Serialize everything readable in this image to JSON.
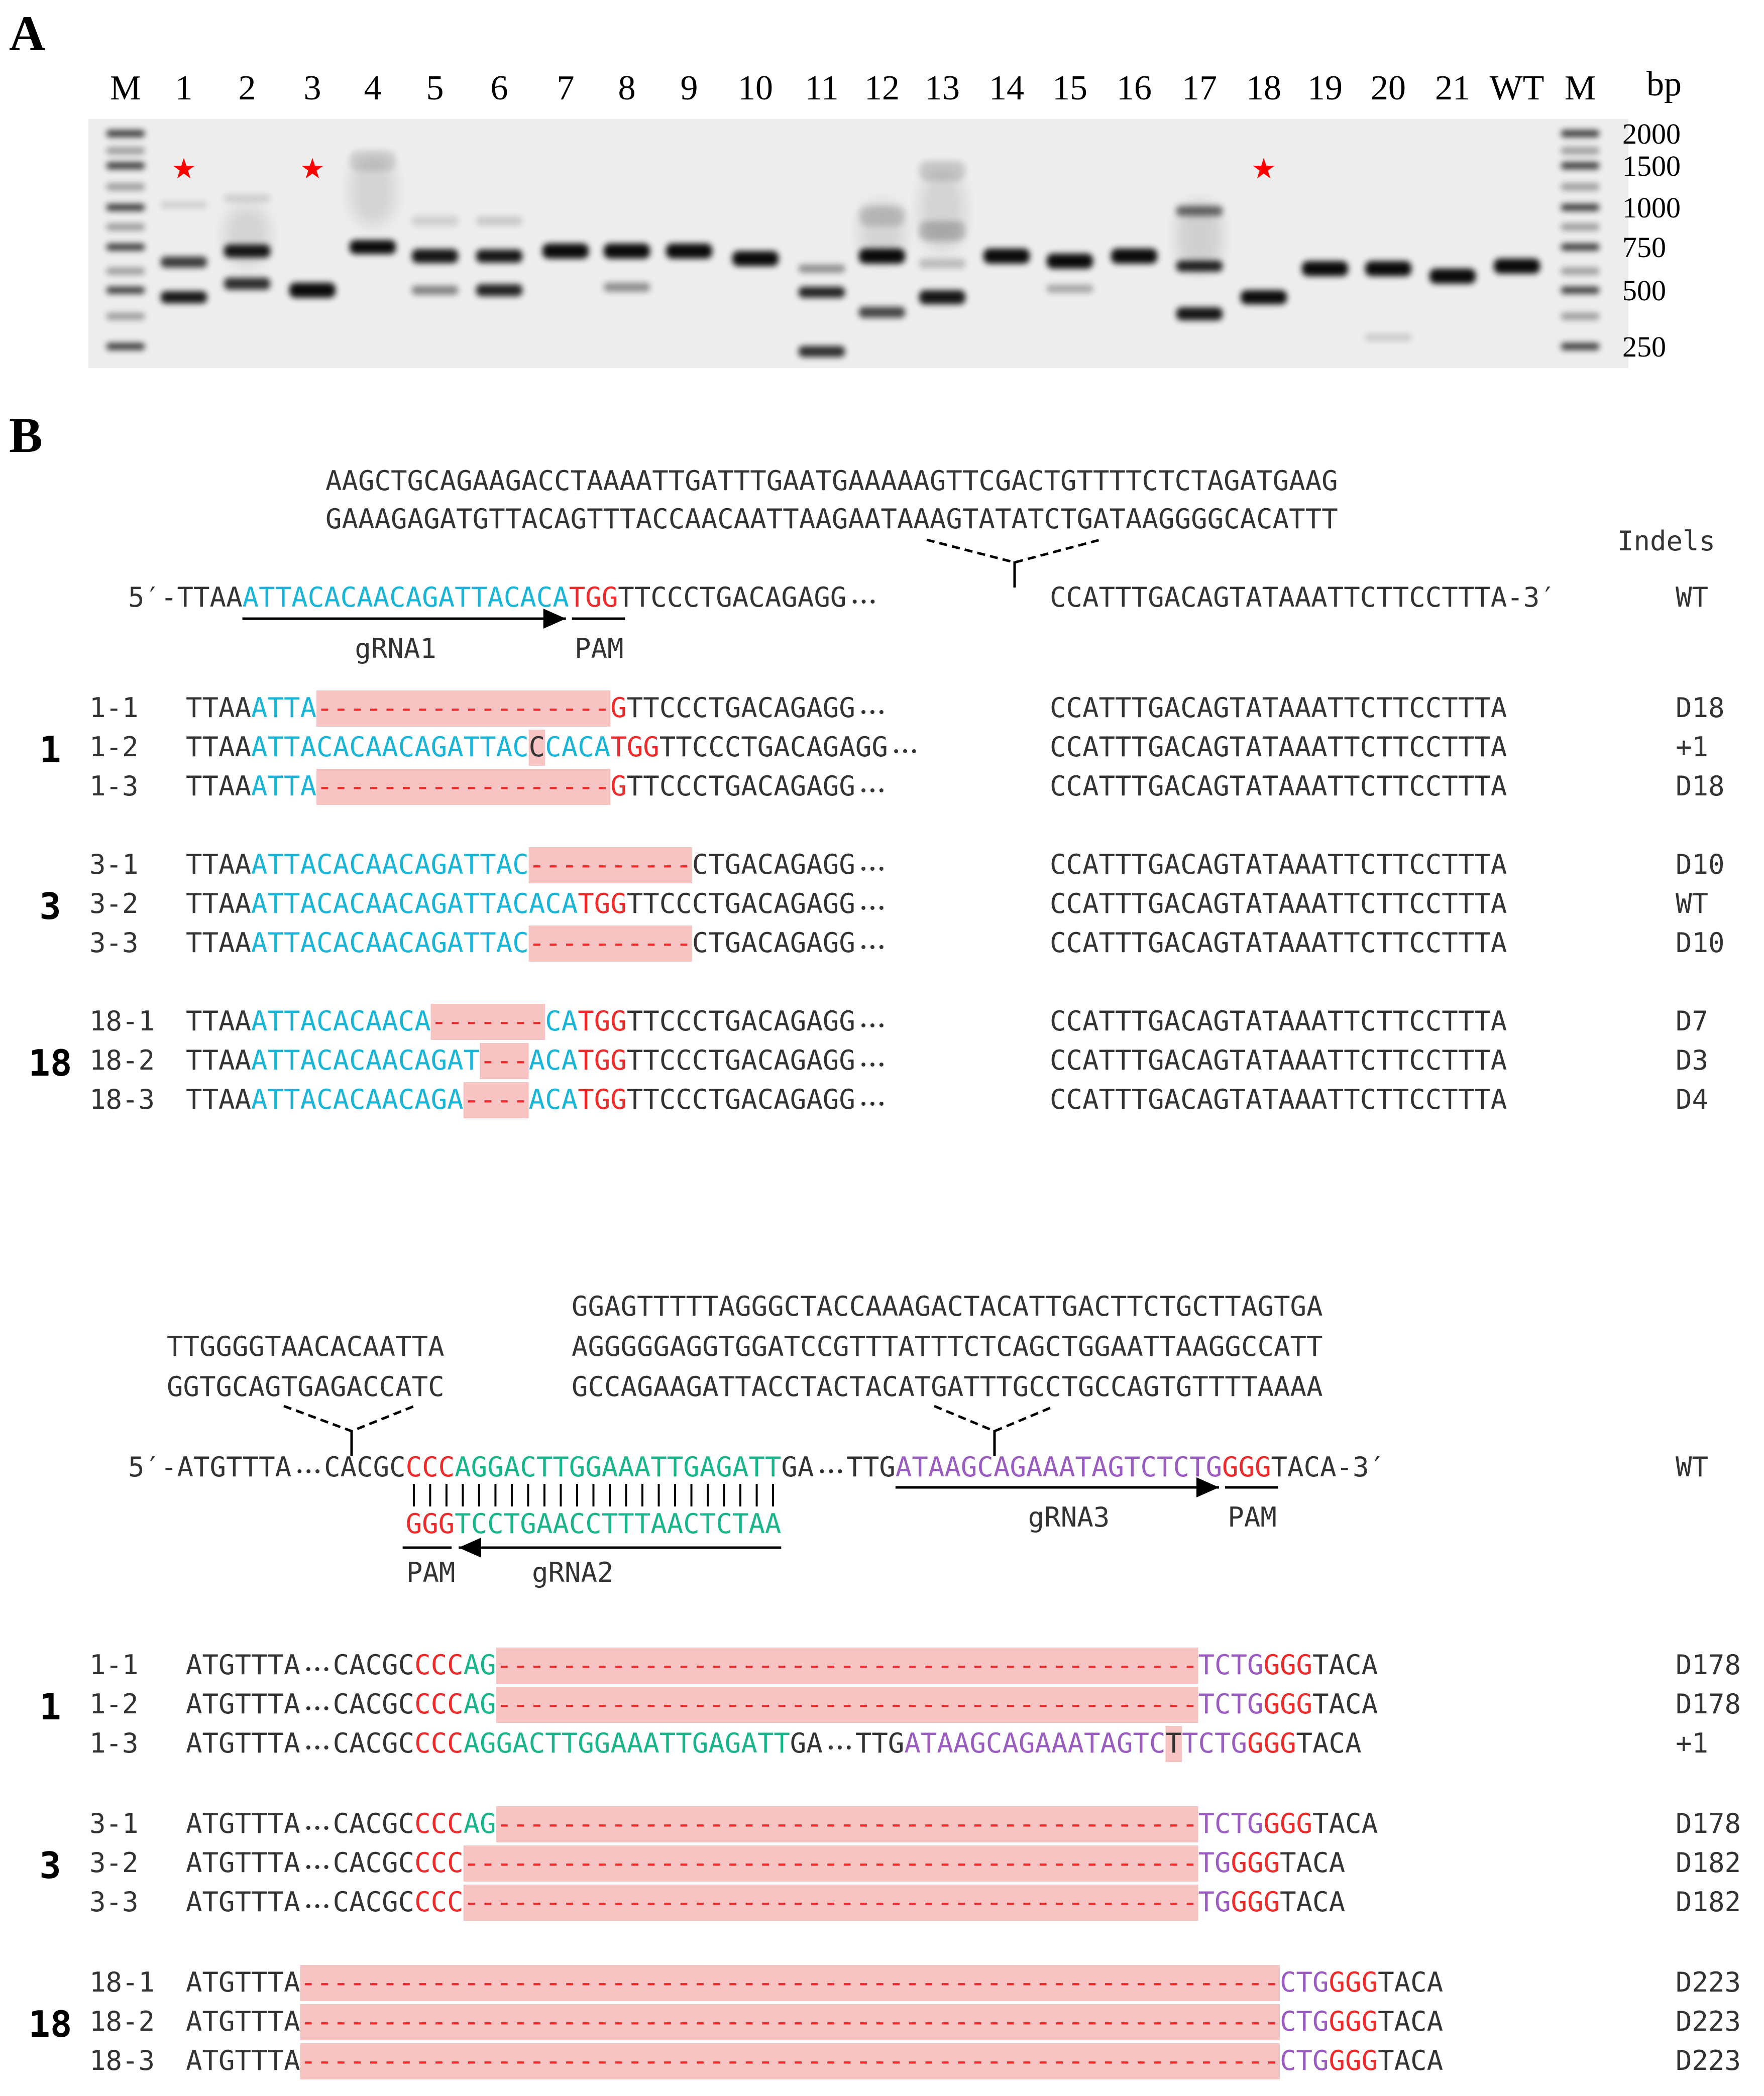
{
  "colors": {
    "black": "#333333",
    "grna1": "#17b5d8",
    "pam": "#ee2a2a",
    "grna2": "#19b58a",
    "grna3": "#9a5cc0",
    "deletion_bg": "#f8c3c3",
    "gel_bg": "#ededed",
    "star": "#ff0000"
  },
  "panelA": {
    "label": "A",
    "lane_labels": [
      "M",
      "1",
      "2",
      "3",
      "4",
      "5",
      "6",
      "7",
      "8",
      "9",
      "10",
      "11",
      "12",
      "13",
      "14",
      "15",
      "16",
      "17",
      "18",
      "19",
      "20",
      "21",
      "WT",
      "M"
    ],
    "bp_title": "bp",
    "ladder": [
      "2000",
      "1500",
      "1000",
      "750",
      "500",
      "250"
    ],
    "stars": [
      "1",
      "3",
      "18"
    ],
    "star_char": "★"
  },
  "panelB": {
    "label": "B",
    "region1": {
      "insert_lines": [
        "AAGCTGCAGAAGACCTAAAATTGATTTGAATGAAAAAGTTCGACTGTTTTCTCTAGATGAAG",
        "GAAAGAGATGTTACAGTTTACCAACAATTAAGAATAAAGTATATCTGATAAGGGGCACATTT"
      ],
      "indels_header": "Indels",
      "wt_prefix": "5′-TTAA",
      "wt_grna": "ATTACACAACAGATTACACA",
      "wt_pam": "TGG",
      "wt_mid": "TTCCCTGACAGAGG",
      "wt_right": "CCATTTGACAGTATAAATTCTTCCTTTA-3′",
      "wt_tag": "WT",
      "grna_label": "gRNA1",
      "pam_label": "PAM",
      "groups": [
        {
          "clone": "1",
          "rows": [
            {
              "id": "1-1",
              "pre": "TTAA",
              "seg": [
                {
                  "t": "ATTA",
                  "c": "grna1"
                },
                {
                  "t": "------------------",
                  "c": "pam",
                  "del": true
                },
                {
                  "t": "G",
                  "c": "pam"
                }
              ],
              "mid": "TTCCCTGACAGAGG",
              "right": "CCATTTGACAGTATAAATTCTTCCTTTA",
              "indel": "D18"
            },
            {
              "id": "1-2",
              "pre": "TTAA",
              "seg": [
                {
                  "t": "ATTACACAACAGATTAC",
                  "c": "grna1"
                },
                {
                  "t": "C",
                  "c": "black",
                  "ins": true
                },
                {
                  "t": "CACA",
                  "c": "grna1"
                },
                {
                  "t": "TGG",
                  "c": "pam"
                }
              ],
              "mid": "TTCCCTGACAGAGG",
              "right": "CCATTTGACAGTATAAATTCTTCCTTTA",
              "indel": "+1"
            },
            {
              "id": "1-3",
              "pre": "TTAA",
              "seg": [
                {
                  "t": "ATTA",
                  "c": "grna1"
                },
                {
                  "t": "------------------",
                  "c": "pam",
                  "del": true
                },
                {
                  "t": "G",
                  "c": "pam"
                }
              ],
              "mid": "TTCCCTGACAGAGG",
              "right": "CCATTTGACAGTATAAATTCTTCCTTTA",
              "indel": "D18"
            }
          ]
        },
        {
          "clone": "3",
          "rows": [
            {
              "id": "3-1",
              "pre": "TTAA",
              "seg": [
                {
                  "t": "ATTACACAACAGATTAC",
                  "c": "grna1"
                },
                {
                  "t": "----------",
                  "c": "pam",
                  "del": true
                }
              ],
              "mid": "CTGACAGAGG",
              "right": "CCATTTGACAGTATAAATTCTTCCTTTA",
              "indel": "D10"
            },
            {
              "id": "3-2",
              "pre": "TTAA",
              "seg": [
                {
                  "t": "ATTACACAACAGATTACACA",
                  "c": "grna1"
                },
                {
                  "t": "TGG",
                  "c": "pam"
                }
              ],
              "mid": "TTCCCTGACAGAGG",
              "right": "CCATTTGACAGTATAAATTCTTCCTTTA",
              "indel": "WT"
            },
            {
              "id": "3-3",
              "pre": "TTAA",
              "seg": [
                {
                  "t": "ATTACACAACAGATTAC",
                  "c": "grna1"
                },
                {
                  "t": "----------",
                  "c": "pam",
                  "del": true
                }
              ],
              "mid": "CTGACAGAGG",
              "right": "CCATTTGACAGTATAAATTCTTCCTTTA",
              "indel": "D10"
            }
          ]
        },
        {
          "clone": "18",
          "rows": [
            {
              "id": "18-1",
              "pre": "TTAA",
              "seg": [
                {
                  "t": "ATTACACAACA",
                  "c": "grna1"
                },
                {
                  "t": "-------",
                  "c": "pam",
                  "del": true
                },
                {
                  "t": "CA",
                  "c": "grna1"
                },
                {
                  "t": "TGG",
                  "c": "pam"
                }
              ],
              "mid": "TTCCCTGACAGAGG",
              "right": "CCATTTGACAGTATAAATTCTTCCTTTA",
              "indel": "D7"
            },
            {
              "id": "18-2",
              "pre": "TTAA",
              "seg": [
                {
                  "t": "ATTACACAACAGAT",
                  "c": "grna1"
                },
                {
                  "t": "---",
                  "c": "pam",
                  "del": true
                },
                {
                  "t": "ACA",
                  "c": "grna1"
                },
                {
                  "t": "TGG",
                  "c": "pam"
                }
              ],
              "mid": "TTCCCTGACAGAGG",
              "right": "CCATTTGACAGTATAAATTCTTCCTTTA",
              "indel": "D3"
            },
            {
              "id": "18-3",
              "pre": "TTAA",
              "seg": [
                {
                  "t": "ATTACACAACAGA",
                  "c": "grna1"
                },
                {
                  "t": "----",
                  "c": "pam",
                  "del": true
                },
                {
                  "t": "ACA",
                  "c": "grna1"
                },
                {
                  "t": "TGG",
                  "c": "pam"
                }
              ],
              "mid": "TTCCCTGACAGAGG",
              "right": "CCATTTGACAGTATAAATTCTTCCTTTA",
              "indel": "D4"
            }
          ]
        }
      ]
    },
    "region2": {
      "insert_left": [
        "TTGGGGTAACACAATTA",
        "GGTGCAGTGAGACCATC"
      ],
      "insert_right": [
        "GGAGTTTTTAGGGCTACCAAAGACTACATTGACTTCTGCTTAGTGA",
        "AGGGGGAGGTGGATCCGTTTATTTCTCAGCTGGAATTAAGGCCATT",
        "GCCAGAAGATTACCTACTACATGATTTGCCTGCCAGTGTTTTAAAA"
      ],
      "wt_prefix": "5′-ATGTTTA",
      "wt_a": "CACGC",
      "wt_pam2": "CCC",
      "wt_grna2": "AGGACTTGGAAATTGAGATT",
      "wt_b": "GA",
      "wt_c": "TTG",
      "wt_grna3": "ATAAGCAGAAATAGTCTCTG",
      "wt_pam3": "GGG",
      "wt_end": "TACA-3′",
      "wt_tag": "WT",
      "complement_pam": "GGG",
      "complement_grna2": "TCCTGAACCTTTAACTCTAA",
      "pam_label": "PAM",
      "grna2_label": "gRNA2",
      "grna3_label": "gRNA3",
      "groups": [
        {
          "clone": "1",
          "rows": [
            {
              "id": "1-1",
              "seg": [
                {
                  "t": "ATGTTTA",
                  "c": "black"
                },
                {
                  "t": "···",
                  "c": "black"
                },
                {
                  "t": "CACGC",
                  "c": "black"
                },
                {
                  "t": "CCC",
                  "c": "pam"
                },
                {
                  "t": "AG",
                  "c": "grna2"
                },
                {
                  "t": "-------------------------------------------",
                  "c": "pam",
                  "del": true
                },
                {
                  "t": "TCTG",
                  "c": "grna3"
                },
                {
                  "t": "GGG",
                  "c": "pam"
                },
                {
                  "t": "TACA",
                  "c": "black"
                }
              ],
              "indel": "D178"
            },
            {
              "id": "1-2",
              "seg": [
                {
                  "t": "ATGTTTA",
                  "c": "black"
                },
                {
                  "t": "···",
                  "c": "black"
                },
                {
                  "t": "CACGC",
                  "c": "black"
                },
                {
                  "t": "CCC",
                  "c": "pam"
                },
                {
                  "t": "AG",
                  "c": "grna2"
                },
                {
                  "t": "-------------------------------------------",
                  "c": "pam",
                  "del": true
                },
                {
                  "t": "TCTG",
                  "c": "grna3"
                },
                {
                  "t": "GGG",
                  "c": "pam"
                },
                {
                  "t": "TACA",
                  "c": "black"
                }
              ],
              "indel": "D178"
            },
            {
              "id": "1-3",
              "seg": [
                {
                  "t": "ATGTTTA",
                  "c": "black"
                },
                {
                  "t": "···",
                  "c": "black"
                },
                {
                  "t": "CACGC",
                  "c": "black"
                },
                {
                  "t": "CCC",
                  "c": "pam"
                },
                {
                  "t": "AGGACTTGGAAATTGAGATT",
                  "c": "grna2"
                },
                {
                  "t": "GA",
                  "c": "black"
                },
                {
                  "t": "···",
                  "c": "black"
                },
                {
                  "t": "TTG",
                  "c": "black"
                },
                {
                  "t": "ATAAGCAGAAATAGTC",
                  "c": "grna3"
                },
                {
                  "t": "T",
                  "c": "black",
                  "ins": true
                },
                {
                  "t": "TCTG",
                  "c": "grna3"
                },
                {
                  "t": "GGG",
                  "c": "pam"
                },
                {
                  "t": "TACA",
                  "c": "black"
                }
              ],
              "indel": "+1"
            }
          ]
        },
        {
          "clone": "3",
          "rows": [
            {
              "id": "3-1",
              "seg": [
                {
                  "t": "ATGTTTA",
                  "c": "black"
                },
                {
                  "t": "···",
                  "c": "black"
                },
                {
                  "t": "CACGC",
                  "c": "black"
                },
                {
                  "t": "CCC",
                  "c": "pam"
                },
                {
                  "t": "AG",
                  "c": "grna2"
                },
                {
                  "t": "-------------------------------------------",
                  "c": "pam",
                  "del": true
                },
                {
                  "t": "TCTG",
                  "c": "grna3"
                },
                {
                  "t": "GGG",
                  "c": "pam"
                },
                {
                  "t": "TACA",
                  "c": "black"
                }
              ],
              "indel": "D178"
            },
            {
              "id": "3-2",
              "seg": [
                {
                  "t": "ATGTTTA",
                  "c": "black"
                },
                {
                  "t": "···",
                  "c": "black"
                },
                {
                  "t": "CACGC",
                  "c": "black"
                },
                {
                  "t": "CCC",
                  "c": "pam"
                },
                {
                  "t": "---------------------------------------------",
                  "c": "pam",
                  "del": true
                },
                {
                  "t": "TG",
                  "c": "grna3"
                },
                {
                  "t": "GGG",
                  "c": "pam"
                },
                {
                  "t": "TACA",
                  "c": "black"
                }
              ],
              "indel": "D182"
            },
            {
              "id": "3-3",
              "seg": [
                {
                  "t": "ATGTTTA",
                  "c": "black"
                },
                {
                  "t": "···",
                  "c": "black"
                },
                {
                  "t": "CACGC",
                  "c": "black"
                },
                {
                  "t": "CCC",
                  "c": "pam"
                },
                {
                  "t": "---------------------------------------------",
                  "c": "pam",
                  "del": true
                },
                {
                  "t": "TG",
                  "c": "grna3"
                },
                {
                  "t": "GGG",
                  "c": "pam"
                },
                {
                  "t": "TACA",
                  "c": "black"
                }
              ],
              "indel": "D182"
            }
          ]
        },
        {
          "clone": "18",
          "rows": [
            {
              "id": "18-1",
              "seg": [
                {
                  "t": "ATGTTTA",
                  "c": "black"
                },
                {
                  "t": "------------------------------------------------------------",
                  "c": "pam",
                  "del": true
                },
                {
                  "t": "CTG",
                  "c": "grna3"
                },
                {
                  "t": "GGG",
                  "c": "pam"
                },
                {
                  "t": "TACA",
                  "c": "black"
                }
              ],
              "indel": "D223"
            },
            {
              "id": "18-2",
              "seg": [
                {
                  "t": "ATGTTTA",
                  "c": "black"
                },
                {
                  "t": "------------------------------------------------------------",
                  "c": "pam",
                  "del": true
                },
                {
                  "t": "CTG",
                  "c": "grna3"
                },
                {
                  "t": "GGG",
                  "c": "pam"
                },
                {
                  "t": "TACA",
                  "c": "black"
                }
              ],
              "indel": "D223"
            },
            {
              "id": "18-3",
              "seg": [
                {
                  "t": "ATGTTTA",
                  "c": "black"
                },
                {
                  "t": "------------------------------------------------------------",
                  "c": "pam",
                  "del": true
                },
                {
                  "t": "CTG",
                  "c": "grna3"
                },
                {
                  "t": "GGG",
                  "c": "pam"
                },
                {
                  "t": "TACA",
                  "c": "black"
                }
              ],
              "indel": "D223"
            }
          ]
        }
      ]
    }
  }
}
